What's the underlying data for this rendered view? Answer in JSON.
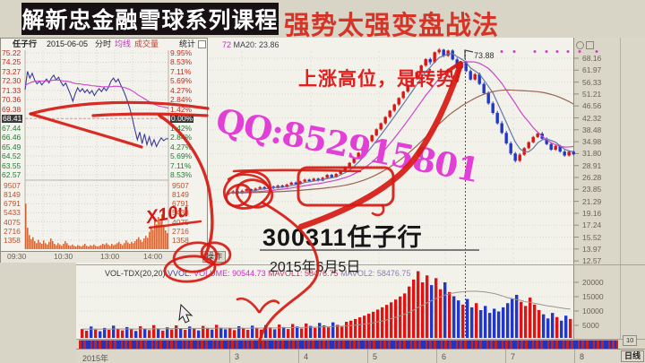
{
  "banner": {
    "course": "解新忠金融雪球系列课程",
    "strategy": "强势太强变盘战法"
  },
  "inset": {
    "header": {
      "symbol": "任子行",
      "date": "2015-06-05",
      "mode": "分时",
      "ma_btn": "均线",
      "vol_btn": "成交量",
      "stat_btn": "统计"
    },
    "footer_btn": "操作",
    "price_ticks": [
      "75.22",
      "74.25",
      "73.27",
      "72.30",
      "71.33",
      "70.36",
      "69.38",
      "68.41",
      "67.44",
      "66.46",
      "65.49",
      "64.52",
      "63.55",
      "62.57"
    ],
    "vol_ticks": [
      "9507",
      "8149",
      "6791",
      "5433",
      "4075",
      "2716",
      "1358"
    ],
    "pct_ticks": [
      "9.95%",
      "8.53%",
      "7.11%",
      "5.69%",
      "4.27%",
      "2.84%",
      "1.42%",
      "0.00%",
      "1.42%",
      "2.84%",
      "4.27%",
      "5.69%",
      "7.11%",
      "8.53%"
    ],
    "time_labels": [
      "09:30",
      "10:30",
      "13:00",
      "14:00"
    ],
    "price_line": [
      71.4,
      73.3,
      72.6,
      73.1,
      72.4,
      72.0,
      72.3,
      71.9,
      72.2,
      72.5,
      72.1,
      72.6,
      72.9,
      72.4,
      72.7,
      72.2,
      71.8,
      72.1,
      71.5,
      70.9,
      70.2,
      71.0,
      71.6,
      71.2,
      71.5,
      71.1,
      71.4,
      71.0,
      71.3,
      70.8,
      71.2,
      71.5,
      71.2,
      71.6,
      71.3,
      71.7,
      72.3,
      72.6,
      72.2,
      72.5,
      71.9,
      71.4,
      70.8,
      70.1,
      69.3,
      68.3,
      67.2,
      66.2,
      67.0,
      65.8,
      66.8,
      65.7,
      66.5,
      65.6,
      66.2,
      65.5,
      66.0,
      66.4,
      66.1,
      66.3,
      66.3
    ],
    "avg_line": [
      71.8,
      72.0,
      72.1,
      72.2,
      72.25,
      72.3,
      72.3,
      72.3,
      72.3,
      72.3,
      72.3,
      72.35,
      72.4,
      72.4,
      72.4,
      72.35,
      72.3,
      72.3,
      72.25,
      72.2,
      72.1,
      72.05,
      72.0,
      72.0,
      71.95,
      71.9,
      71.9,
      71.85,
      71.8,
      71.8,
      71.75,
      71.75,
      71.7,
      71.7,
      71.7,
      71.7,
      71.7,
      71.75,
      71.75,
      71.75,
      71.7,
      71.65,
      71.6,
      71.5,
      71.4,
      71.25,
      71.1,
      70.9,
      70.75,
      70.6,
      70.45,
      70.3,
      70.15,
      70.0,
      69.9,
      69.8,
      69.7,
      69.65,
      69.6,
      69.55,
      69.5
    ],
    "volumes": [
      6800,
      3200,
      2100,
      1500,
      1800,
      1200,
      900,
      1400,
      1000,
      800,
      1300,
      900,
      700,
      1100,
      1600,
      1200,
      800,
      600,
      900,
      700,
      500,
      800,
      1200,
      900,
      600,
      500,
      700,
      500,
      400,
      600,
      500,
      400,
      600,
      800,
      500,
      400,
      600,
      500,
      700,
      500,
      400,
      500,
      600,
      800,
      700,
      900,
      700,
      500,
      800,
      600,
      700,
      900,
      1100,
      800,
      600,
      900,
      1300,
      1000,
      800,
      1100,
      900,
      1200,
      1500,
      1800,
      1400,
      1100,
      1600,
      2000,
      1700,
      2600,
      3400,
      2900,
      4300,
      3700,
      4800,
      4100,
      5200,
      3600,
      2800,
      2400
    ]
  },
  "main": {
    "indicator_prefix": "72",
    "indicator_ma": "MA20: 23.86",
    "peak_label": "73.88",
    "price_ticks": [
      "68.16",
      "61.97",
      "56.33",
      "51.21",
      "46.56",
      "42.32",
      "38.48",
      "34.98",
      "31.80",
      "28.91",
      "26.28",
      "23.85",
      "21.29",
      "19.16",
      "17.24",
      "15.52",
      "13.97",
      "12.57"
    ],
    "vol_ticks": [
      "20000",
      "15000",
      "10000",
      "5000"
    ],
    "vol_header": {
      "name": "VOL-TDX(20,20)",
      "vvol": "VVOL:",
      "volume": "VOLUME: 90544.73",
      "mavol1": "MAVOL1: 58476.75",
      "mavol2": "MAVOL2: 58476.75"
    },
    "months": [
      "2015年",
      "3",
      "4",
      "5",
      "6",
      "7",
      "8"
    ],
    "period_tab": "日线",
    "scale_btn": "10",
    "candles": [
      [
        23.0,
        23.4,
        22.8,
        23.2
      ],
      [
        23.2,
        23.7,
        23.0,
        23.5
      ],
      [
        23.5,
        23.7,
        22.9,
        23.1
      ],
      [
        23.1,
        23.8,
        23.0,
        23.6
      ],
      [
        23.6,
        24.1,
        23.4,
        23.9
      ],
      [
        23.9,
        24.0,
        23.4,
        23.6
      ],
      [
        23.6,
        24.2,
        23.4,
        24.0
      ],
      [
        24.0,
        24.5,
        23.8,
        24.3
      ],
      [
        24.3,
        24.5,
        23.8,
        24.0
      ],
      [
        24.0,
        24.6,
        23.8,
        24.4
      ],
      [
        24.4,
        24.6,
        23.9,
        24.1
      ],
      [
        24.1,
        24.8,
        24.0,
        24.6
      ],
      [
        24.6,
        24.8,
        24.1,
        24.3
      ],
      [
        24.3,
        25.0,
        24.2,
        24.8
      ],
      [
        24.8,
        25.4,
        24.6,
        25.2
      ],
      [
        25.2,
        25.4,
        24.7,
        24.9
      ],
      [
        24.9,
        25.6,
        24.8,
        25.4
      ],
      [
        25.4,
        26.0,
        25.2,
        25.8
      ],
      [
        25.8,
        26.0,
        25.3,
        25.5
      ],
      [
        25.5,
        26.2,
        25.4,
        26.0
      ],
      [
        26.0,
        26.2,
        25.4,
        25.6
      ],
      [
        25.6,
        26.4,
        25.5,
        26.2
      ],
      [
        26.2,
        27.0,
        26.0,
        26.8
      ],
      [
        26.8,
        27.0,
        26.1,
        26.3
      ],
      [
        26.3,
        27.2,
        26.2,
        27.0
      ],
      [
        27.0,
        27.9,
        26.8,
        27.7
      ],
      [
        27.7,
        28.7,
        27.5,
        28.5
      ],
      [
        28.5,
        29.7,
        28.3,
        29.5
      ],
      [
        29.5,
        30.9,
        29.3,
        30.7
      ],
      [
        30.7,
        32.2,
        30.5,
        32.0
      ],
      [
        32.0,
        33.7,
        31.8,
        33.5
      ],
      [
        33.5,
        35.3,
        33.2,
        35.1
      ],
      [
        35.1,
        37.0,
        34.8,
        36.8
      ],
      [
        36.8,
        38.9,
        36.5,
        38.6
      ],
      [
        38.6,
        40.8,
        38.2,
        40.5
      ],
      [
        40.5,
        42.9,
        40.1,
        42.6
      ],
      [
        42.6,
        45.1,
        42.2,
        44.8
      ],
      [
        44.8,
        47.4,
        44.3,
        47.1
      ],
      [
        47.1,
        49.9,
        46.6,
        49.6
      ],
      [
        49.6,
        52.5,
        49.1,
        52.2
      ],
      [
        52.2,
        55.4,
        51.7,
        55.0
      ],
      [
        55.0,
        58.3,
        54.4,
        57.9
      ],
      [
        57.9,
        61.4,
        57.3,
        61.0
      ],
      [
        61.0,
        64.8,
        60.4,
        64.3
      ],
      [
        64.3,
        68.2,
        63.6,
        67.7
      ],
      [
        67.7,
        68.5,
        64.8,
        66.0
      ],
      [
        66.0,
        72.0,
        65.5,
        71.5
      ],
      [
        71.5,
        73.88,
        70.5,
        73.0
      ],
      [
        73.0,
        73.5,
        68.8,
        69.5
      ],
      [
        69.5,
        73.0,
        68.9,
        72.5
      ],
      [
        72.5,
        73.2,
        67.0,
        67.5
      ],
      [
        67.5,
        68.5,
        62.4,
        63.0
      ],
      [
        63.0,
        66.6,
        62.5,
        66.0
      ],
      [
        66.0,
        66.8,
        61.0,
        61.5
      ],
      [
        61.5,
        62.3,
        57.0,
        57.5
      ],
      [
        57.5,
        60.6,
        57.0,
        60.0
      ],
      [
        60.0,
        60.8,
        55.0,
        55.5
      ],
      [
        55.5,
        56.3,
        51.0,
        51.5
      ],
      [
        51.5,
        52.3,
        47.0,
        47.5
      ],
      [
        47.5,
        48.2,
        43.5,
        44.0
      ],
      [
        44.0,
        44.7,
        40.1,
        40.5
      ],
      [
        40.5,
        41.2,
        37.1,
        37.5
      ],
      [
        37.5,
        38.1,
        34.1,
        34.5
      ],
      [
        34.5,
        35.0,
        31.4,
        31.8
      ],
      [
        31.8,
        32.2,
        29.6,
        30.0
      ],
      [
        30.0,
        31.9,
        29.7,
        31.5
      ],
      [
        31.5,
        33.5,
        31.2,
        33.2
      ],
      [
        33.2,
        35.1,
        32.9,
        34.8
      ],
      [
        34.8,
        36.6,
        34.5,
        36.3
      ],
      [
        36.3,
        37.7,
        36.0,
        37.3
      ],
      [
        37.3,
        37.8,
        35.5,
        35.8
      ],
      [
        35.8,
        36.2,
        34.0,
        34.3
      ],
      [
        34.3,
        34.7,
        32.5,
        32.8
      ],
      [
        32.8,
        34.1,
        32.5,
        33.8
      ],
      [
        33.8,
        34.1,
        32.0,
        32.3
      ],
      [
        32.3,
        32.7,
        31.0,
        31.3
      ],
      [
        31.3,
        32.6,
        31.0,
        32.3
      ],
      [
        32.3,
        32.6,
        31.3,
        31.6
      ]
    ],
    "volumes": [
      3200,
      2600,
      4100,
      3000,
      2400,
      3600,
      2900,
      4400,
      3300,
      2700,
      3900,
      3100,
      2500,
      4200,
      3400,
      2800,
      4600,
      3200,
      2600,
      3800,
      3000,
      4500,
      3500,
      2900,
      4100,
      3300,
      2700,
      4300,
      3600,
      3000,
      4700,
      3700,
      3100,
      3400,
      2800,
      4200,
      3500,
      2900,
      4400,
      3600,
      3000,
      4600,
      3800,
      3100,
      4800,
      3900,
      3200,
      5000,
      4100,
      3400,
      5200,
      4300,
      3600,
      5400,
      4500,
      3800,
      5600,
      4700,
      4000,
      5800,
      6200,
      6800,
      7400,
      8000,
      8700,
      9400,
      10200,
      11000,
      11900,
      12800,
      13800,
      14900,
      16000,
      18500,
      21000,
      24000,
      20000,
      22500,
      19000,
      21500,
      17500,
      20000,
      16500,
      15000,
      13500,
      12000,
      14000,
      11000,
      12500,
      10000,
      11500,
      9000,
      10500,
      9500,
      11000,
      12500,
      14000,
      15500,
      13000,
      11500,
      14500,
      12000,
      10000,
      8500,
      7000,
      9000,
      7500,
      6200,
      8000,
      6800
    ],
    "vol_color_seed": "rrbrbbrbrrbrbrbrrbrbrrbrbrbrrbrbb"
  },
  "overlay": {
    "headline": "上涨高位，是转势",
    "qq": "QQ:852915801",
    "stock_title": "300311任子行",
    "stock_date": "2015年6月5日",
    "hand_note": "X10u"
  },
  "colors": {
    "up": "#dc1414",
    "down": "#2236c8",
    "annotation": "#d61a12",
    "qq": "#e23fd6",
    "avg_line": "#cc44cc",
    "price_line": "#3b3b95",
    "intraday_vol": "#c95b28"
  }
}
